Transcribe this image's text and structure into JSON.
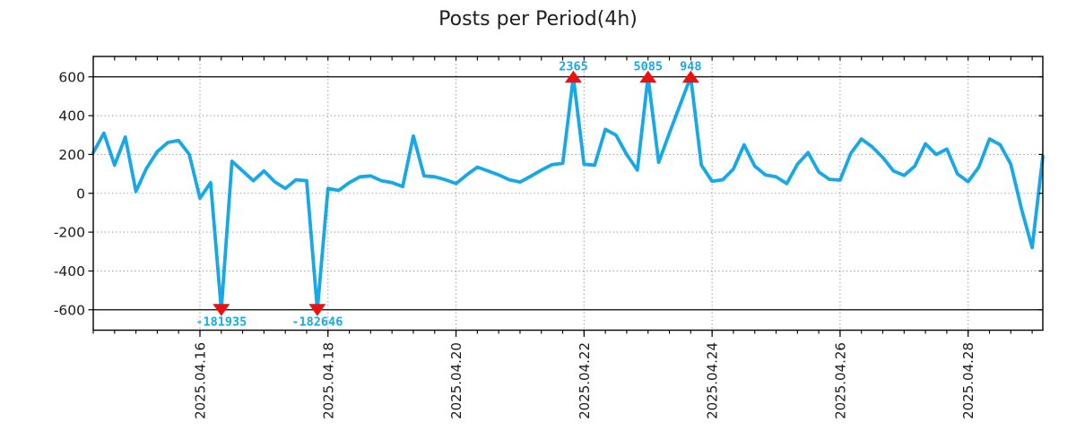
{
  "chart_data": {
    "type": "line",
    "title": "Posts per Period(4h)",
    "line_color": "#17a8e8",
    "annotation_color": "#17a8e8",
    "marker_color": "#ee1010",
    "grid_color": "#9b9b9b",
    "axis_color": "#000000",
    "tick_label_color": "#1a1a1a",
    "start": "2025-04-14 08:00",
    "interval_hours": 4,
    "ylim": [
      -705,
      705
    ],
    "yticks": [
      600,
      400,
      200,
      0,
      -200,
      -400,
      -600
    ],
    "clip_lines": [
      600,
      -600
    ],
    "grid_hlines": [
      400,
      200,
      0,
      -200,
      -400
    ],
    "xtick_labels": [
      "2025.04.16",
      "2025.04.18",
      "2025.04.20",
      "2025.04.22",
      "2025.04.24",
      "2025.04.26",
      "2025.04.28"
    ],
    "xtick_hour_offsets": [
      40,
      88,
      136,
      184,
      232,
      280,
      328
    ],
    "minor_tick_every_hours": 8,
    "values": [
      210,
      310,
      145,
      290,
      10,
      130,
      215,
      262,
      272,
      200,
      -25,
      55,
      -600,
      165,
      115,
      65,
      115,
      60,
      25,
      70,
      65,
      -600,
      25,
      15,
      55,
      85,
      90,
      65,
      55,
      35,
      295,
      90,
      85,
      70,
      50,
      95,
      135,
      115,
      95,
      70,
      58,
      88,
      120,
      148,
      155,
      600,
      150,
      145,
      330,
      300,
      200,
      120,
      600,
      160,
      310,
      455,
      600,
      145,
      62,
      70,
      125,
      250,
      140,
      95,
      85,
      50,
      150,
      210,
      110,
      72,
      68,
      205,
      280,
      240,
      185,
      115,
      92,
      140,
      255,
      200,
      228,
      100,
      60,
      135,
      280,
      250,
      150,
      -80,
      -280,
      190
    ],
    "annotations": [
      {
        "index": 12,
        "label": "-181935",
        "dir": "down"
      },
      {
        "index": 21,
        "label": "-182646",
        "dir": "down"
      },
      {
        "index": 45,
        "label": "2365",
        "dir": "up"
      },
      {
        "index": 52,
        "label": "5085",
        "dir": "up"
      },
      {
        "index": 56,
        "label": "948",
        "dir": "up"
      }
    ]
  }
}
